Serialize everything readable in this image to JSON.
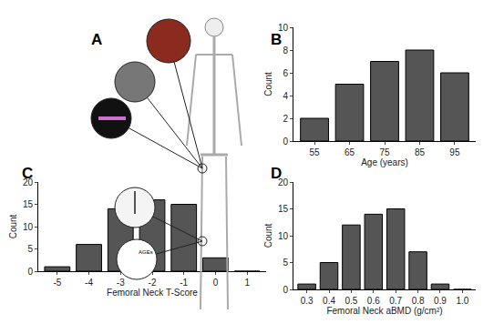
{
  "diagram": {
    "panel": "A",
    "labels": [
      "AGEs"
    ]
  },
  "chart_data": [
    {
      "type": "bar",
      "panel": "B",
      "xlabel": "Age (years)",
      "ylabel": "Count",
      "categories": [
        "55",
        "65",
        "75",
        "85",
        "95"
      ],
      "values": [
        2,
        5,
        7,
        8,
        6
      ],
      "color": "#555555",
      "ylim": [
        0,
        10
      ],
      "yticks": [
        0,
        2,
        4,
        6,
        8,
        10
      ],
      "grid": false
    },
    {
      "type": "bar",
      "panel": "C",
      "xlabel": "Femoral Neck T-Score",
      "ylabel": "Count",
      "categories": [
        "-5",
        "-4",
        "-3",
        "-2",
        "-1",
        "0",
        "1"
      ],
      "values": [
        1,
        6,
        14,
        16,
        15,
        3,
        0
      ],
      "color": "#555555",
      "ylim": [
        0,
        20
      ],
      "yticks": [
        0,
        5,
        10,
        15,
        20
      ],
      "grid": false
    },
    {
      "type": "bar",
      "panel": "D",
      "xlabel": "Femoral Neck aBMD (g/cm²)",
      "ylabel": "Count",
      "categories": [
        "0.3",
        "0.4",
        "0.5",
        "0.6",
        "0.7",
        "0.8",
        "0.9",
        "1.0"
      ],
      "values": [
        1,
        5,
        12,
        14,
        15,
        7,
        1,
        0
      ],
      "color": "#555555",
      "ylim": [
        0,
        20
      ],
      "yticks": [
        0,
        5,
        10,
        15,
        20
      ],
      "grid": false
    }
  ]
}
